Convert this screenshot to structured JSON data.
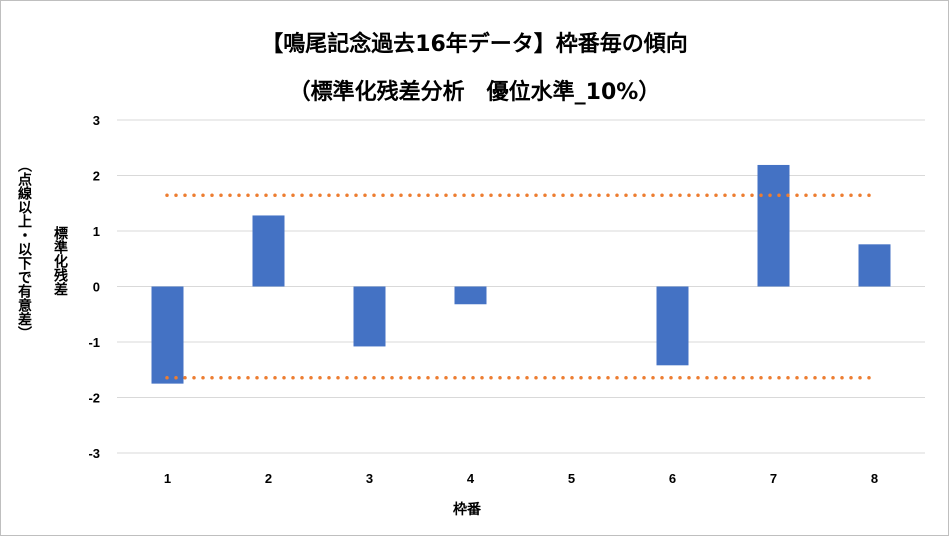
{
  "chart_data": {
    "type": "bar",
    "title": "【鳴尾記念過去16年データ】枠番毎の傾向",
    "subtitle": "（標準化残差分析　優位水準_10%）",
    "xlabel": "枠番",
    "ylabel": "標準化残差",
    "ylabel_note": "（点線以上・以下で有意差）",
    "categories": [
      "1",
      "2",
      "3",
      "4",
      "5",
      "6",
      "7",
      "8"
    ],
    "values": [
      -1.75,
      1.28,
      -1.08,
      -0.32,
      0,
      -1.42,
      2.19,
      0.76
    ],
    "ylim": [
      -3,
      3
    ],
    "yticks": [
      3,
      2,
      1,
      0,
      -1,
      -2,
      -3
    ],
    "threshold_upper": 1.645,
    "threshold_lower": -1.645,
    "grid": true,
    "legend": "none",
    "colors": {
      "bar": "#4472C4",
      "threshold": "#ED7D31",
      "grid": "#d9d9d9"
    }
  }
}
